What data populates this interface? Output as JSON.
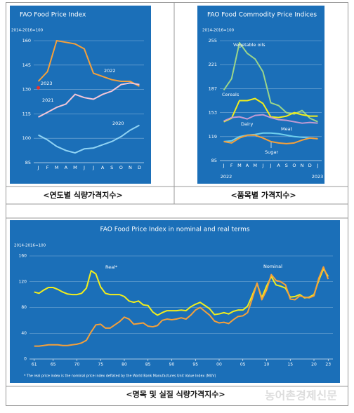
{
  "chart_data": [
    {
      "type": "line",
      "title": "FAO Food Price Index",
      "subtitle": "2014-2016=100",
      "categories": [
        "J",
        "F",
        "M",
        "A",
        "M",
        "J",
        "J",
        "A",
        "S",
        "O",
        "N",
        "D"
      ],
      "ylim": [
        85,
        160
      ],
      "yticks": [
        85,
        100,
        115,
        130,
        145,
        160
      ],
      "grid": true,
      "series": [
        {
          "name": "2023",
          "color": "#e8322b",
          "values": [
            131,
            null,
            null,
            null,
            null,
            null,
            null,
            null,
            null,
            null,
            null,
            null
          ]
        },
        {
          "name": "2022",
          "color": "#f5a03a",
          "values": [
            135,
            141,
            160,
            159,
            158,
            155,
            140,
            138,
            136,
            135,
            135,
            132
          ]
        },
        {
          "name": "2021",
          "color": "#f4c6d8",
          "values": [
            113,
            116,
            119,
            121,
            127,
            125,
            124,
            127,
            129,
            133,
            134,
            133
          ]
        },
        {
          "name": "2020",
          "color": "#8fd3f4",
          "values": [
            102,
            99,
            95,
            92.5,
            91,
            93.5,
            94,
            96,
            98,
            101,
            105,
            108
          ]
        }
      ]
    },
    {
      "type": "line",
      "title": "FAO Food Commodity Price Indices",
      "subtitle": "2014-2016=100",
      "categories": [
        "J",
        "F",
        "M",
        "A",
        "M",
        "J",
        "J",
        "A",
        "S",
        "O",
        "N",
        "D",
        "J"
      ],
      "period_labels": [
        "2022",
        "2023"
      ],
      "ylim": [
        85,
        255
      ],
      "yticks": [
        85,
        119,
        153,
        187,
        221,
        255
      ],
      "grid": true,
      "series": [
        {
          "name": "Vegetable oils",
          "color": "#9bd58a",
          "values": [
            185,
            201,
            252,
            237,
            229,
            211,
            167,
            163,
            153,
            151,
            156,
            145,
            140
          ]
        },
        {
          "name": "Cereals",
          "color": "#f2ee1c",
          "values": [
            140,
            145,
            170,
            170,
            173,
            166,
            147,
            146,
            148,
            153,
            150,
            148,
            148
          ]
        },
        {
          "name": "Dairy",
          "color": "#c39bd3",
          "values": [
            141,
            146,
            147,
            144,
            149,
            150,
            146,
            143,
            142,
            140,
            138,
            139,
            138
          ]
        },
        {
          "name": "Meat",
          "color": "#6fd0ee",
          "values": [
            112,
            113,
            119,
            121,
            122,
            124,
            124,
            123,
            121,
            119,
            118,
            117,
            116
          ]
        },
        {
          "name": "Sugar",
          "color": "#f5a03a",
          "values": [
            112,
            110,
            117,
            121,
            121,
            117,
            112,
            110,
            109,
            110,
            114,
            117,
            116
          ]
        }
      ]
    },
    {
      "type": "line",
      "title": "FAO Food Price Index in nominal and real terms",
      "subtitle": "2014-2016=100",
      "note": "* The real price index is the nominal price index deflated by the World Bank Manufactures Unit Value Index (MUV)",
      "x": [
        1961,
        1962,
        1963,
        1964,
        1965,
        1966,
        1967,
        1968,
        1969,
        1970,
        1971,
        1972,
        1973,
        1974,
        1975,
        1976,
        1977,
        1978,
        1979,
        1980,
        1981,
        1982,
        1983,
        1984,
        1985,
        1986,
        1987,
        1988,
        1989,
        1990,
        1991,
        1992,
        1993,
        1994,
        1995,
        1996,
        1997,
        1998,
        1999,
        2000,
        2001,
        2002,
        2003,
        2004,
        2005,
        2006,
        2007,
        2008,
        2009,
        2010,
        2011,
        2012,
        2013,
        2014,
        2015,
        2016,
        2017,
        2018,
        2019,
        2020,
        2021,
        2022,
        2023
      ],
      "xlim": [
        1960,
        2024
      ],
      "xticks": [
        {
          "value": 1961,
          "label": "61"
        },
        {
          "value": 1965,
          "label": "65"
        },
        {
          "value": 1970,
          "label": "70"
        },
        {
          "value": 1975,
          "label": "75"
        },
        {
          "value": 1980,
          "label": "80"
        },
        {
          "value": 1985,
          "label": "85"
        },
        {
          "value": 1990,
          "label": "90"
        },
        {
          "value": 1995,
          "label": "95"
        },
        {
          "value": 2000,
          "label": "00"
        },
        {
          "value": 2005,
          "label": "05"
        },
        {
          "value": 2010,
          "label": "10"
        },
        {
          "value": 2015,
          "label": "15"
        },
        {
          "value": 2020,
          "label": "20"
        },
        {
          "value": 2023,
          "label": "23"
        }
      ],
      "ylim": [
        0,
        160
      ],
      "yticks": [
        0,
        40,
        80,
        120,
        160
      ],
      "grid": true,
      "series": [
        {
          "name": "Real*",
          "color": "#f2ee1c",
          "values": [
            104,
            102,
            107,
            111,
            111,
            108,
            104,
            101,
            100,
            100,
            102,
            110,
            137,
            132,
            112,
            102,
            100,
            100,
            100,
            97,
            90,
            88,
            90,
            84,
            83,
            73,
            68,
            72,
            75,
            75,
            75,
            76,
            75,
            81,
            85,
            88,
            83,
            78,
            69,
            70,
            72,
            70,
            74,
            76,
            76,
            82,
            99,
            117,
            95,
            113,
            128,
            115,
            113,
            110,
            96,
            97,
            100,
            95,
            96,
            100,
            122,
            140,
            128
          ]
        },
        {
          "name": "Nominal",
          "color": "#f5a03a",
          "values": [
            20,
            20,
            21,
            22,
            22,
            22,
            21,
            21,
            22,
            23,
            25,
            29,
            42,
            53,
            54,
            48,
            48,
            53,
            58,
            65,
            62,
            54,
            55,
            56,
            51,
            50,
            52,
            60,
            62,
            61,
            62,
            64,
            62,
            68,
            76,
            80,
            74,
            68,
            59,
            56,
            57,
            55,
            61,
            66,
            67,
            72,
            94,
            118,
            92,
            107,
            131,
            122,
            120,
            115,
            93,
            92,
            98,
            96,
            95,
            98,
            125,
            143,
            124
          ]
        }
      ]
    }
  ],
  "captions": [
    "<연도별 식량가격지수>",
    "<품목별 가격지수>",
    "<명목 및 실질 식량가격지수>"
  ],
  "watermark": "농어촌경제신문"
}
